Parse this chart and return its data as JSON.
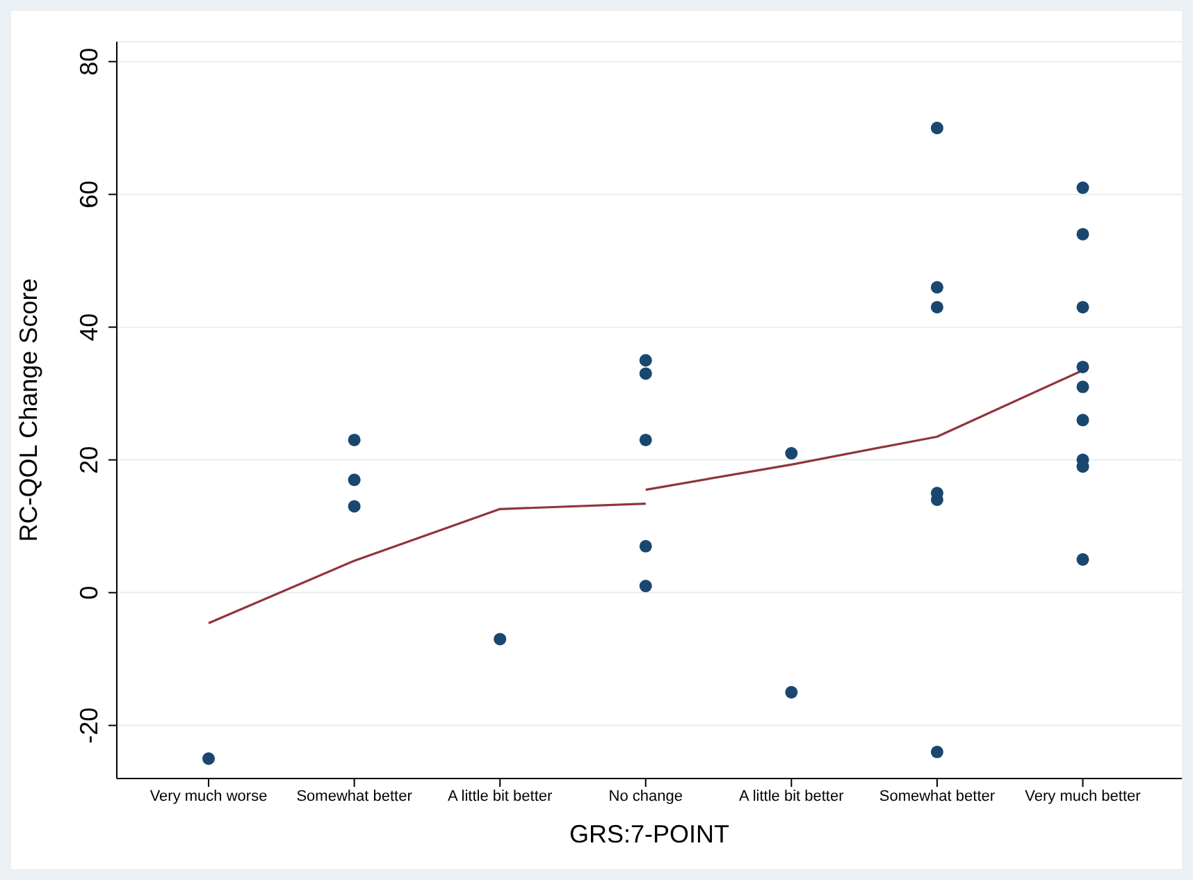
{
  "chart_data": {
    "type": "scatter",
    "xlabel": "GRS:7-POINT",
    "ylabel": "RC-QOL Change Score",
    "categories": [
      "Very much worse",
      "Somewhat better",
      "A little bit better",
      "No change",
      "A little bit better",
      "Somewhat better",
      "Very much better"
    ],
    "ylim": [
      -28,
      83
    ],
    "yticks": [
      -20,
      0,
      20,
      40,
      60,
      80
    ],
    "grid": "y",
    "marker": "circle",
    "series": [
      {
        "color": "#1a476f",
        "values": [
          -25,
          23,
          -7,
          35,
          21,
          70,
          61
        ]
      },
      {
        "color": "#1a476f",
        "values": [
          null,
          17,
          null,
          33,
          -15,
          46,
          54
        ]
      },
      {
        "color": "#1a476f",
        "values": [
          null,
          13,
          null,
          23,
          null,
          43,
          43
        ]
      },
      {
        "color": "#1a476f",
        "values": [
          null,
          null,
          null,
          7,
          null,
          15,
          34
        ]
      },
      {
        "color": "#1a476f",
        "values": [
          null,
          null,
          null,
          1,
          null,
          14,
          31
        ]
      },
      {
        "color": "#1a476f",
        "values": [
          null,
          null,
          null,
          null,
          null,
          -24,
          26
        ]
      },
      {
        "color": "#1a476f",
        "values": [
          null,
          null,
          null,
          null,
          null,
          null,
          20
        ]
      },
      {
        "color": "#1a476f",
        "values": [
          null,
          null,
          null,
          null,
          null,
          null,
          19
        ]
      },
      {
        "color": "#1a476f",
        "values": [
          null,
          null,
          null,
          null,
          null,
          null,
          5
        ]
      },
      {
        "type": "line",
        "color": "#90353b",
        "marker": "none",
        "line_style": "solid",
        "values": [
          -4.6,
          4.8,
          12.6,
          13.4,
          null,
          null,
          null
        ]
      },
      {
        "type": "line",
        "color": "#90353b",
        "marker": "none",
        "line_style": "solid",
        "values": [
          null,
          null,
          null,
          15.5,
          19.3,
          23.5,
          33.5
        ]
      }
    ]
  }
}
